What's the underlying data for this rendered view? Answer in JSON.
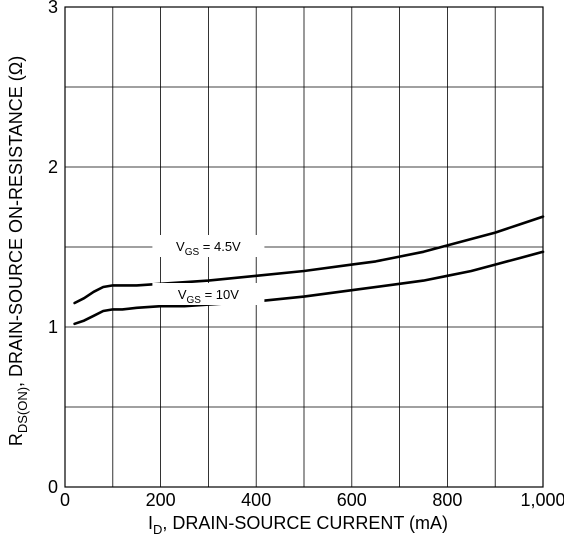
{
  "chart_data": {
    "type": "line",
    "title": "",
    "xlabel": {
      "main": "I",
      "sub": "D",
      "rest": ", DRAIN-SOURCE CURRENT (mA)"
    },
    "ylabel": {
      "main": "R",
      "sub": "DS(ON)",
      "rest": ", DRAIN-SOURCE ON-RESISTANCE (Ω)"
    },
    "xlim": [
      0,
      1000
    ],
    "ylim": [
      0,
      3
    ],
    "x_ticks": [
      0,
      200,
      400,
      600,
      800,
      1000
    ],
    "x_tick_labels": [
      "0",
      "200",
      "400",
      "600",
      "800",
      "1,000"
    ],
    "y_ticks": [
      0,
      1,
      2,
      3
    ],
    "y_tick_labels": [
      "0",
      "1",
      "2",
      "3"
    ],
    "grid": true,
    "series": [
      {
        "name": "VGS = 4.5V",
        "label": {
          "main": "V",
          "sub": "GS",
          "rest": " = 4.5V"
        },
        "label_at": [
          300,
          1.5
        ],
        "x": [
          20,
          40,
          60,
          80,
          100,
          120,
          150,
          200,
          250,
          300,
          400,
          500,
          600,
          650,
          700,
          750,
          800,
          850,
          900,
          950,
          1000
        ],
        "values": [
          1.15,
          1.18,
          1.22,
          1.25,
          1.26,
          1.26,
          1.26,
          1.27,
          1.28,
          1.29,
          1.32,
          1.35,
          1.39,
          1.41,
          1.44,
          1.47,
          1.51,
          1.55,
          1.59,
          1.64,
          1.69
        ]
      },
      {
        "name": "VGS = 10V",
        "label": {
          "main": "V",
          "sub": "GS",
          "rest": " = 10V"
        },
        "label_at": [
          300,
          1.2
        ],
        "x": [
          20,
          40,
          60,
          80,
          100,
          120,
          150,
          200,
          250,
          300,
          400,
          500,
          600,
          700,
          750,
          800,
          850,
          900,
          950,
          1000
        ],
        "values": [
          1.02,
          1.04,
          1.07,
          1.1,
          1.11,
          1.11,
          1.12,
          1.13,
          1.13,
          1.14,
          1.16,
          1.19,
          1.23,
          1.27,
          1.29,
          1.32,
          1.35,
          1.39,
          1.43,
          1.47
        ]
      }
    ]
  }
}
